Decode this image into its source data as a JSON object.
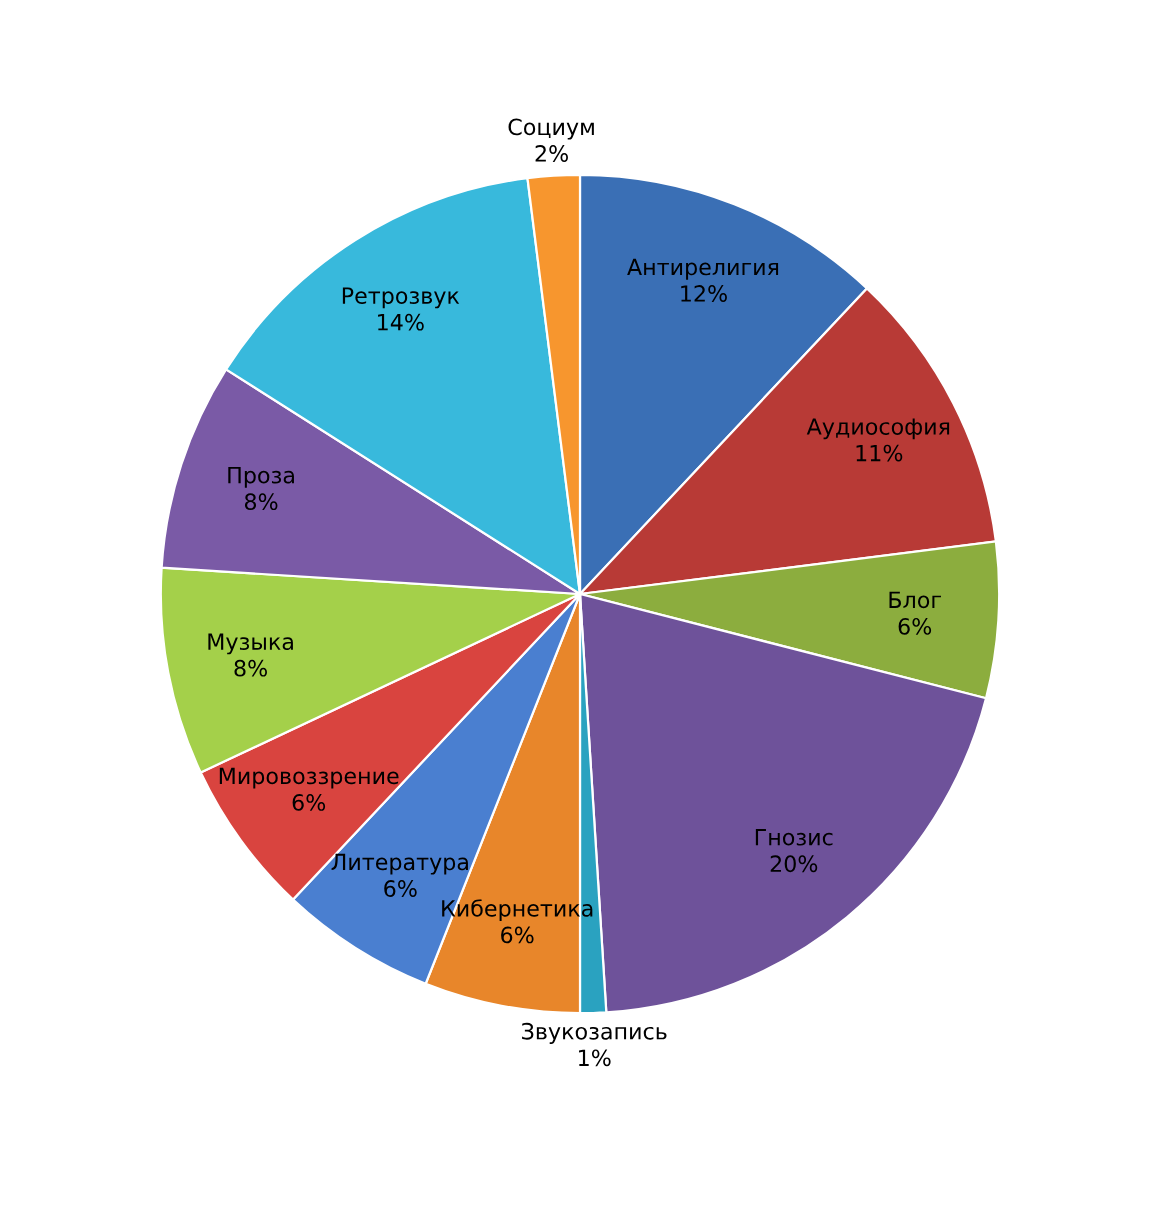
{
  "chart_data": {
    "type": "pie",
    "categories": [
      "Антирелигия",
      "Аудиософия",
      "Блог",
      "Гнозис",
      "Звукозапись",
      "Кибернетика",
      "Литература",
      "Мировоззрение",
      "Музыка",
      "Проза",
      "Ретрозвук",
      "Социум"
    ],
    "values": [
      12,
      11,
      6,
      20,
      1,
      6,
      6,
      6,
      8,
      8,
      14,
      2
    ],
    "value_labels": [
      "12%",
      "11%",
      "6%",
      "20%",
      "1%",
      "6%",
      "6%",
      "6%",
      "8%",
      "8%",
      "14%",
      "2%"
    ],
    "colors": [
      "#3a6fb5",
      "#b83a36",
      "#8cad3e",
      "#6e529a",
      "#2aa2c0",
      "#e8862a",
      "#4a7fd0",
      "#d9443f",
      "#a4d04a",
      "#7a5aa6",
      "#38b9dc",
      "#f7962e"
    ],
    "legend": false
  }
}
